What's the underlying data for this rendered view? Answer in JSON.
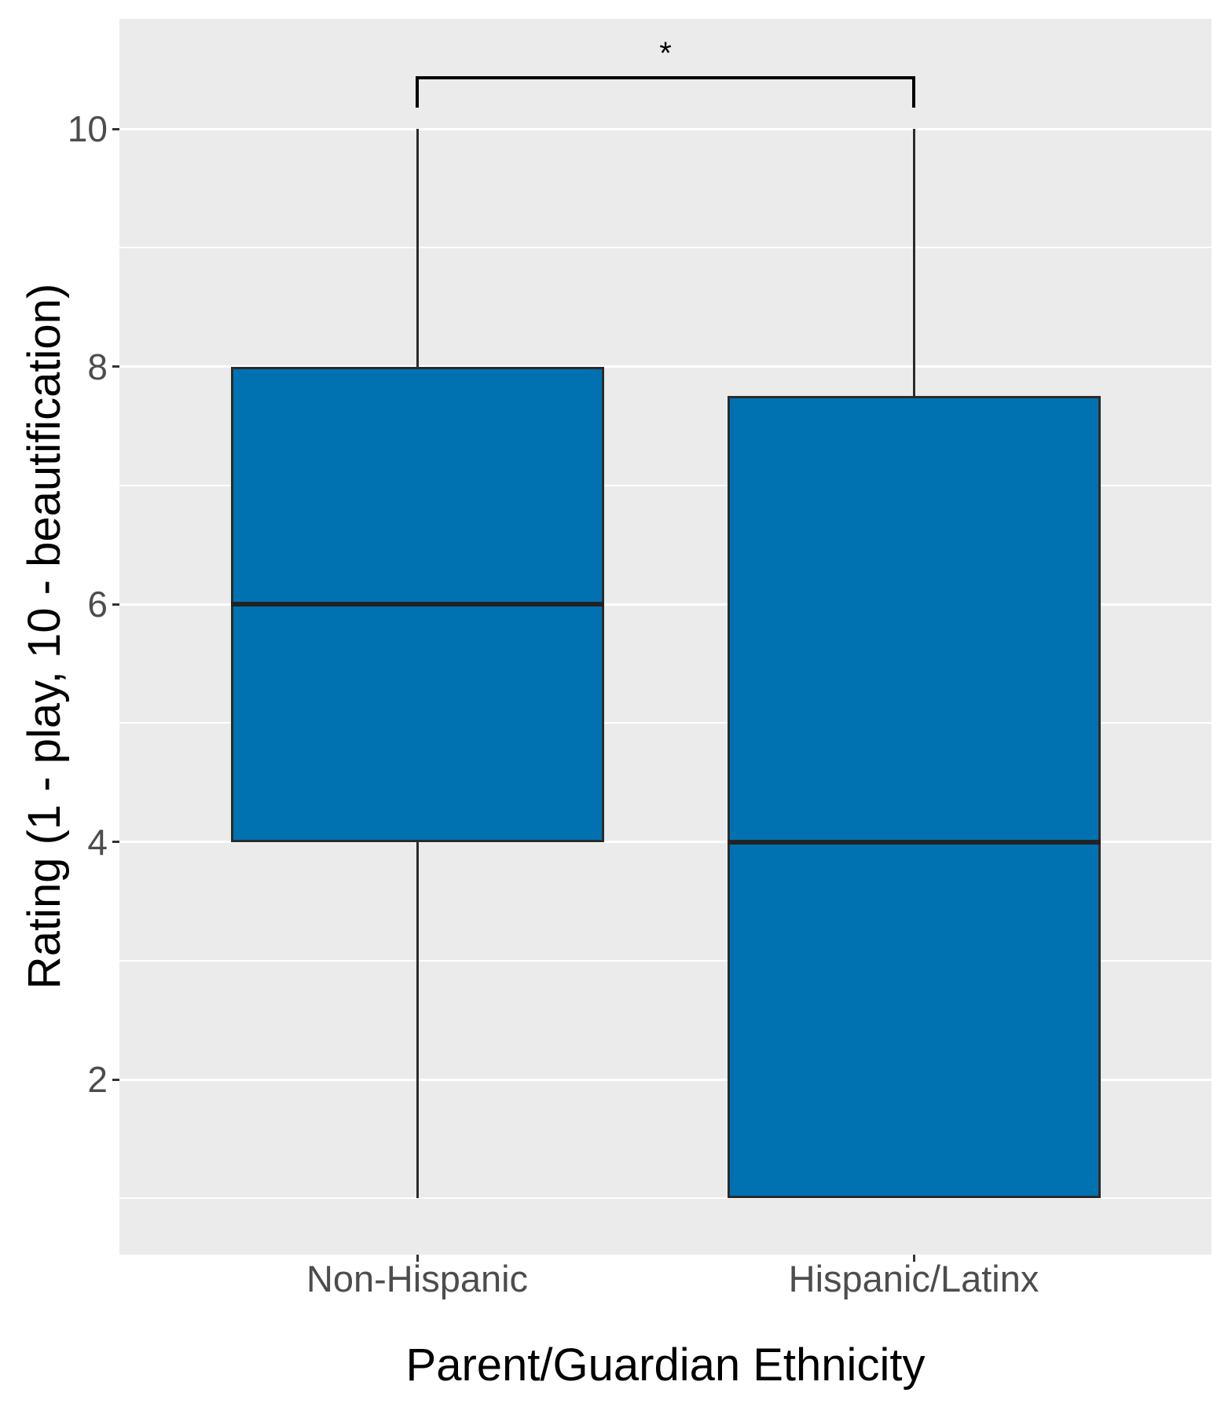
{
  "figure": {
    "background": "#FFFFFF",
    "panel_background": "#EBEBEB",
    "gridline_color": "#FFFFFF",
    "box_fill": "#0072B2",
    "box_stroke": "#2B2B2B",
    "median_color": "#222222",
    "bracket_color": "#000000",
    "axis_text_color": "#4D4D4D",
    "axis_title_color": "#000000"
  },
  "chart_data": {
    "type": "boxplot",
    "title": "",
    "xlabel": "Parent/Guardian Ethnicity",
    "ylabel": "Rating (1 - play, 10 - beautification)",
    "categories": [
      "Non-Hispanic",
      "Hispanic/Latinx"
    ],
    "series": [
      {
        "name": "Non-Hispanic",
        "whisker_low": 1,
        "q1": 4,
        "median": 6,
        "q3": 8,
        "whisker_high": 10
      },
      {
        "name": "Hispanic/Latinx",
        "whisker_low": 1,
        "q1": 1,
        "median": 4,
        "q3": 7.75,
        "whisker_high": 10
      }
    ],
    "y_major_ticks": [
      10,
      8,
      6,
      4,
      2
    ],
    "y_minor_gridlines": [
      9,
      7,
      5,
      3,
      1
    ],
    "ylim": [
      0.55,
      10.93
    ],
    "grid": "major+minor, horizontal only",
    "legend": "none",
    "significance": {
      "label": "*",
      "groups": [
        "Non-Hispanic",
        "Hispanic/Latinx"
      ],
      "bar_value": 10.44,
      "tick_bottom_value": 10.18
    }
  }
}
